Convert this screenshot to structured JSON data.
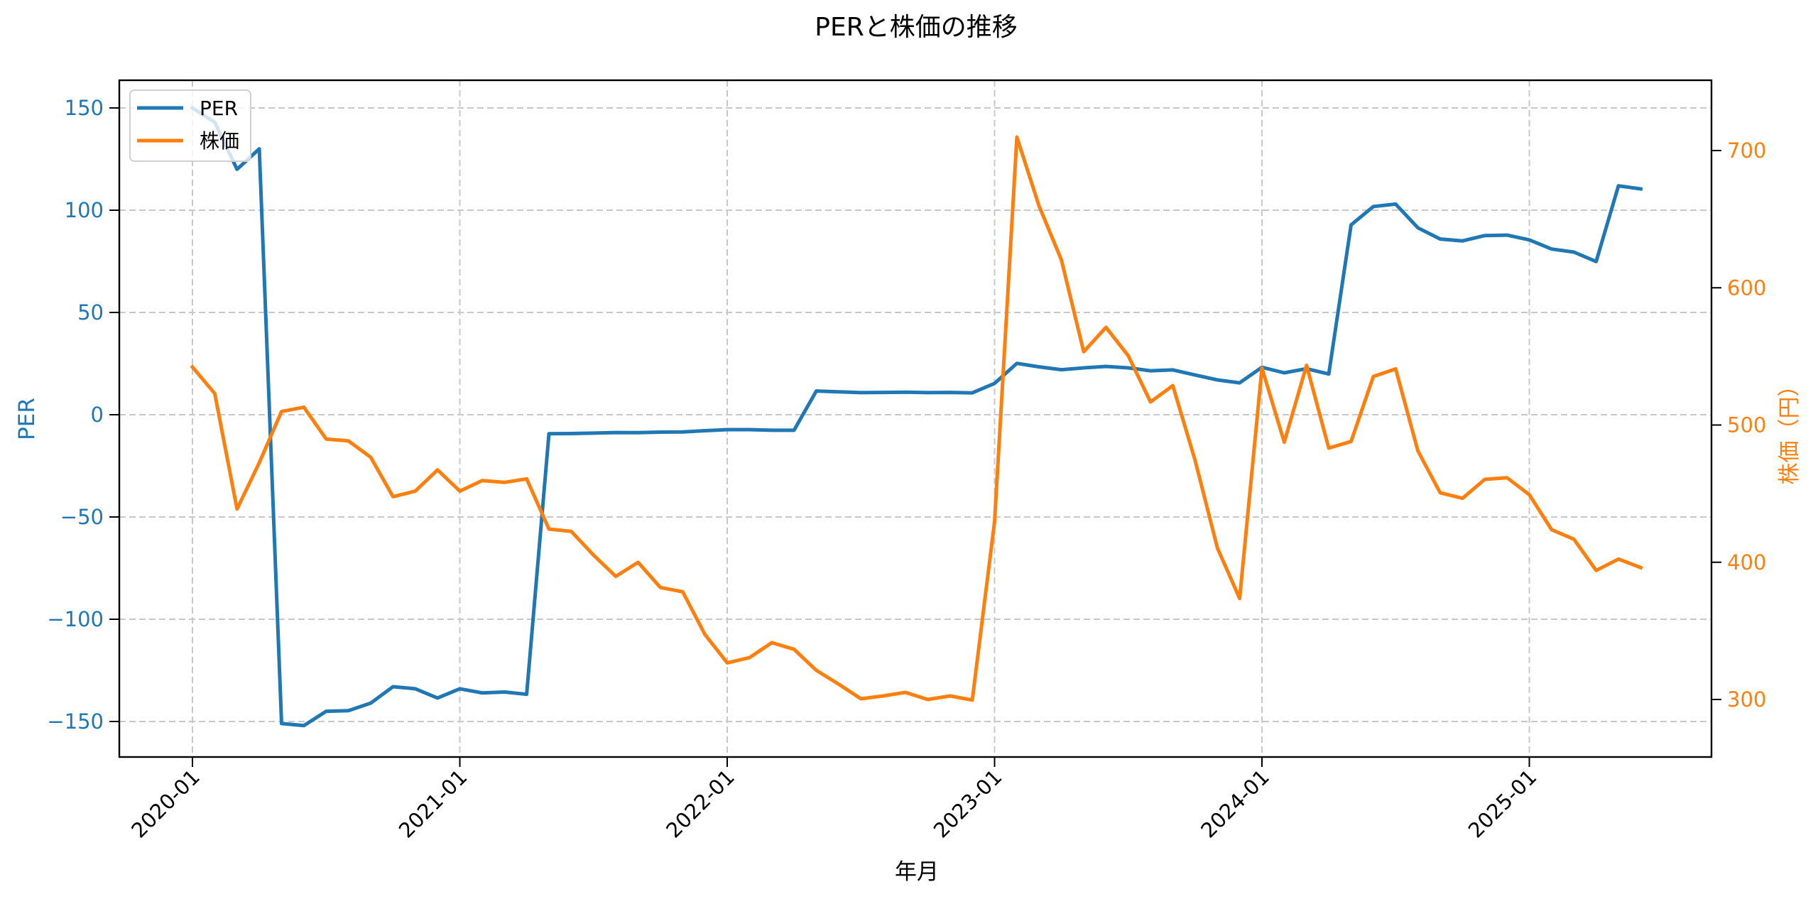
{
  "chart_data": {
    "type": "line",
    "title": "PERと株価の推移",
    "xlabel": "年月",
    "ylabel": "PER",
    "ylabel_right": "株価（円）",
    "grid": true,
    "legend_position": "upper left",
    "x_tick_labels": [
      "2020-01",
      "2021-01",
      "2022-01",
      "2023-01",
      "2024-01",
      "2025-01"
    ],
    "y_ticks_left": [
      150,
      100,
      50,
      0,
      -50,
      -100,
      -150
    ],
    "y_tick_labels_left": [
      "150",
      "100",
      "50",
      "0",
      "−50",
      "−100",
      "−150"
    ],
    "y_ticks_right": [
      700,
      600,
      500,
      400,
      300
    ],
    "y_tick_labels_right": [
      "700",
      "600",
      "500",
      "400",
      "300"
    ],
    "ylim_left": [
      -168,
      162
    ],
    "ylim_right": [
      258,
      752
    ],
    "x": [
      "2020-01",
      "2020-02",
      "2020-03",
      "2020-04",
      "2020-05",
      "2020-06",
      "2020-07",
      "2020-08",
      "2020-09",
      "2020-10",
      "2020-11",
      "2020-12",
      "2021-01",
      "2021-02",
      "2021-03",
      "2021-04",
      "2021-05",
      "2021-06",
      "2021-07",
      "2021-08",
      "2021-09",
      "2021-10",
      "2021-11",
      "2021-12",
      "2022-01",
      "2022-02",
      "2022-03",
      "2022-04",
      "2022-05",
      "2022-06",
      "2022-07",
      "2022-08",
      "2022-09",
      "2022-10",
      "2022-11",
      "2022-12",
      "2023-01",
      "2023-02",
      "2023-03",
      "2023-04",
      "2023-05",
      "2023-06",
      "2023-07",
      "2023-08",
      "2023-09",
      "2023-10",
      "2023-11",
      "2023-12",
      "2024-01",
      "2024-02",
      "2024-03",
      "2024-04",
      "2024-05",
      "2024-06",
      "2024-07",
      "2024-08",
      "2024-09",
      "2024-10",
      "2024-11",
      "2024-12",
      "2025-01",
      "2025-02",
      "2025-03",
      "2025-04",
      "2025-05",
      "2025-06"
    ],
    "series": [
      {
        "name": "PER",
        "axis": "left",
        "color": "#1f77b4",
        "values": [
          150,
          143,
          120,
          130,
          -151,
          -152,
          -145,
          -144.7,
          -141,
          -133,
          -134,
          -138.5,
          -134,
          -136,
          -135.6,
          -136.7,
          -9.3,
          -9.2,
          -9,
          -8.7,
          -8.8,
          -8.5,
          -8.4,
          -7.8,
          -7.3,
          -7.3,
          -7.6,
          -7.6,
          11.6,
          11.2,
          10.8,
          10.9,
          11,
          10.8,
          10.9,
          10.7,
          15.3,
          25.1,
          23.4,
          22,
          22.9,
          23.6,
          22.9,
          21.5,
          21.9,
          19.4,
          17,
          15.6,
          23.2,
          20.5,
          22.5,
          19.9,
          92.8,
          101.8,
          103,
          91.4,
          85.9,
          85,
          87.6,
          87.8,
          85.5,
          81,
          79.5,
          74.9,
          111.9,
          110.4
        ]
      },
      {
        "name": "株価",
        "axis": "right",
        "color": "#ff7f0e",
        "values": [
          542.3,
          522.9,
          438.8,
          472.5,
          509.9,
          513,
          489.8,
          488.4,
          476.5,
          447.8,
          451.8,
          467.3,
          451.8,
          459.5,
          458.2,
          460.8,
          424.2,
          422.5,
          405.2,
          389.7,
          400,
          381.6,
          378.5,
          347.4,
          326.7,
          330.5,
          341.4,
          336.6,
          321.2,
          311.2,
          300.5,
          302.6,
          305.2,
          300,
          302.6,
          299.6,
          429.6,
          709.8,
          659.4,
          620.3,
          553.4,
          571.2,
          550.4,
          516.8,
          528.7,
          474.2,
          410.4,
          373.6,
          541.5,
          487.5,
          543.5,
          483.2,
          488,
          535.4,
          540.9,
          481.1,
          450.6,
          446.6,
          460.4,
          461.6,
          449.2,
          423.7,
          416.8,
          394,
          402.3,
          396.1
        ]
      }
    ]
  },
  "legend": {
    "items": [
      {
        "label": "PER",
        "color": "#1f77b4"
      },
      {
        "label": "株価",
        "color": "#ff7f0e"
      }
    ]
  }
}
